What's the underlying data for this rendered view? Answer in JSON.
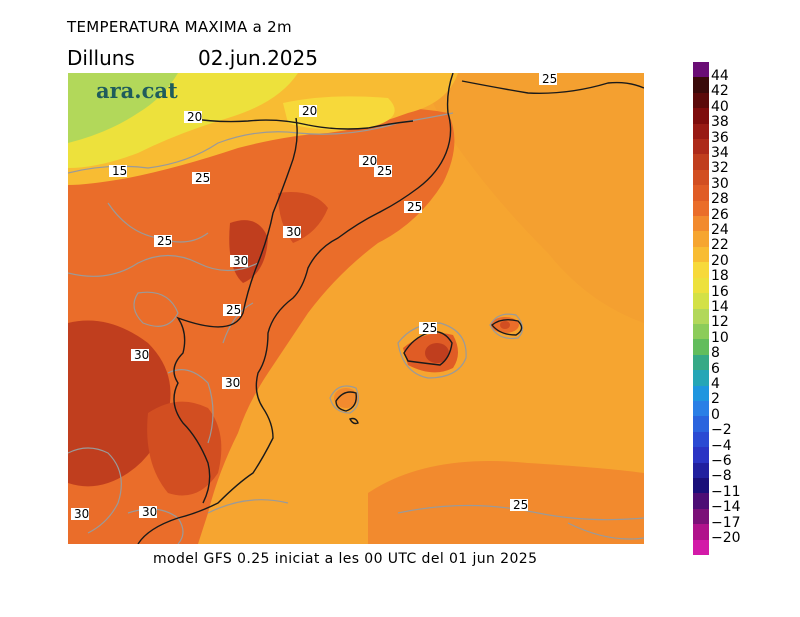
{
  "header": {
    "title": "TEMPERATURA MAXIMA a 2m",
    "day": "Dilluns",
    "date": "02.jun.2025"
  },
  "logo": "ara.cat",
  "footer": "model GFS 0.25 iniciat a les 00 UTC del 01 jun 2025",
  "legend": {
    "labels": [
      "44",
      "42",
      "40",
      "38",
      "36",
      "34",
      "32",
      "30",
      "28",
      "26",
      "24",
      "22",
      "20",
      "18",
      "16",
      "14",
      "12",
      "10",
      "8",
      "6",
      "4",
      "2",
      "0",
      "−2",
      "−4",
      "−6",
      "−8",
      "−11",
      "−14",
      "−17",
      "−20"
    ],
    "colors": [
      "#6a0d75",
      "#3a0a0a",
      "#5c0a0a",
      "#7e0c0c",
      "#981a14",
      "#ad2a1a",
      "#c03e1e",
      "#d24e21",
      "#e05c25",
      "#ea6d2a",
      "#f28a2e",
      "#f6a530",
      "#f8bc33",
      "#f7d93a",
      "#ede13c",
      "#d3e146",
      "#b2d85a",
      "#8ccc5a",
      "#62bd5c",
      "#36a986",
      "#25a6b6",
      "#1f96df",
      "#2a7fe6",
      "#2a64de",
      "#2a4ad3",
      "#2a34c4",
      "#21209f",
      "#1a0f7a",
      "#4d0d75",
      "#7b1078",
      "#b0128b",
      "#d31aa8"
    ]
  },
  "contour_labels": [
    "25",
    "20",
    "20",
    "20",
    "25",
    "15",
    "25",
    "25",
    "30",
    "25",
    "30",
    "25",
    "25",
    "30",
    "30",
    "25",
    "30",
    "30"
  ]
}
